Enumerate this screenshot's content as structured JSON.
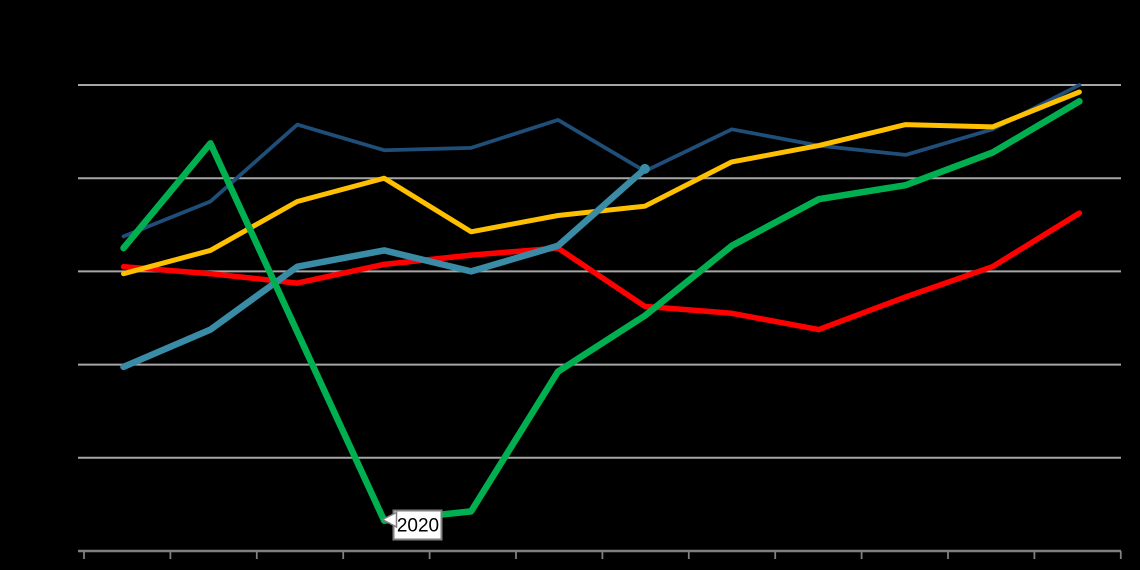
{
  "chart_data": {
    "type": "line",
    "title": "",
    "background_color": "#000000",
    "plot_background": "none",
    "gridline_color": "#A6A6A6",
    "axis_color": "#7F7F7F",
    "x_point_count": 12,
    "x_tick_count": 13,
    "x_labels_visible": false,
    "y_labels_visible": false,
    "y_scale_note": "relative index estimated from unlabeled gridlines; axis baseline = 0, gridlines every 20",
    "ylim": [
      0,
      110
    ],
    "y_gridlines": [
      20,
      40,
      60,
      80,
      100
    ],
    "legend_visible": false,
    "series": [
      {
        "name": "dark-blue",
        "color": "#1F4E79",
        "width": 3.75,
        "values": [
          67.5,
          75,
          91.5,
          86,
          86.5,
          92.5,
          81.5,
          90.5,
          87,
          85,
          90.5,
          100
        ]
      },
      {
        "name": "red",
        "color": "#FF0000",
        "width": 5.5,
        "values": [
          61,
          59.5,
          57.5,
          61.5,
          63.5,
          65,
          52.5,
          51,
          47.5,
          54.5,
          61,
          72.5
        ]
      },
      {
        "name": "gold",
        "color": "#FFC000",
        "width": 5,
        "values": [
          59.5,
          64.5,
          75,
          80,
          68.5,
          72,
          74,
          83.5,
          87,
          91.5,
          91,
          98.5
        ]
      },
      {
        "name": "teal",
        "color": "#3A8CA6",
        "width": 6.5,
        "end_marker": true,
        "values": [
          39.5,
          47.5,
          61,
          64.5,
          60,
          65.5,
          82
        ]
      },
      {
        "name": "green",
        "color": "#00B050",
        "width": 6.5,
        "values": [
          65,
          87.5,
          47,
          6.5,
          8.5,
          38.5,
          50.5,
          65.5,
          75.5,
          78.5,
          85.5,
          96.5
        ]
      }
    ],
    "annotation": {
      "text": "2020",
      "attached_series": "green",
      "point_index": 3,
      "box_fill": "#FFFFFF",
      "box_border": "#7F7F7F"
    }
  }
}
